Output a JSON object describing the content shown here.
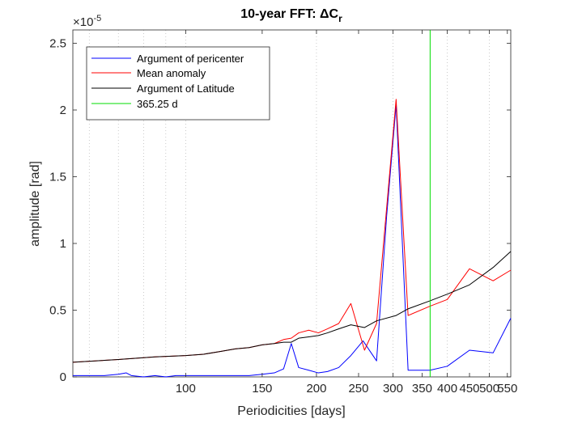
{
  "chart_data": {
    "type": "line",
    "title": "10-year FFT: ",
    "title_symbol": "ΔC",
    "title_subscript": "r",
    "xlabel": "Periodicities [days]",
    "ylabel": "amplitude [rad]",
    "y_exponent_prefix": "×10",
    "y_exponent": "-5",
    "xscale": "log",
    "xlim": [
      55,
      560
    ],
    "ylim": [
      0,
      2.6
    ],
    "x_ticks": [
      100,
      150,
      200,
      250,
      300,
      350,
      400,
      450,
      500,
      550
    ],
    "x_tick_labels": [
      "100",
      "150",
      "200",
      "250",
      "300",
      "350",
      "400",
      "450",
      "500",
      "550"
    ],
    "y_ticks": [
      0,
      0.5,
      1,
      1.5,
      2,
      2.5
    ],
    "y_tick_labels": [
      "0",
      "0.5",
      "1",
      "1.5",
      "2",
      "2.5"
    ],
    "grid": "minor-dotted-x",
    "legend_position": "top-left",
    "series": [
      {
        "name": "Argument of pericenter",
        "color": "#0000ff",
        "x": [
          55,
          60,
          65,
          70,
          73,
          75,
          80,
          85,
          90,
          95,
          100,
          110,
          120,
          130,
          140,
          150,
          160,
          168,
          175,
          182,
          192,
          202,
          212,
          225,
          240,
          256,
          275,
          290,
          305,
          325,
          365,
          400,
          450,
          510,
          560
        ],
        "y": [
          0.01,
          0.01,
          0.01,
          0.02,
          0.03,
          0.01,
          0.0,
          0.01,
          0.0,
          0.01,
          0.01,
          0.01,
          0.01,
          0.01,
          0.01,
          0.02,
          0.03,
          0.06,
          0.25,
          0.07,
          0.05,
          0.03,
          0.04,
          0.07,
          0.16,
          0.27,
          0.12,
          1.2,
          2.04,
          0.05,
          0.05,
          0.08,
          0.2,
          0.18,
          0.44
        ]
      },
      {
        "name": "Mean anomaly",
        "color": "#ff0000",
        "x": [
          55,
          70,
          85,
          100,
          110,
          120,
          130,
          140,
          150,
          160,
          168,
          175,
          182,
          192,
          202,
          212,
          225,
          240,
          245,
          258,
          275,
          305,
          325,
          365,
          400,
          450,
          510,
          560
        ],
        "y": [
          0.11,
          0.13,
          0.15,
          0.16,
          0.17,
          0.19,
          0.21,
          0.22,
          0.24,
          0.25,
          0.28,
          0.29,
          0.33,
          0.35,
          0.33,
          0.36,
          0.4,
          0.55,
          0.45,
          0.2,
          0.4,
          2.08,
          0.46,
          0.53,
          0.58,
          0.81,
          0.72,
          0.8
        ]
      },
      {
        "name": "Argument of Latitude",
        "color": "#000000",
        "x": [
          55,
          70,
          85,
          100,
          110,
          120,
          130,
          140,
          150,
          160,
          168,
          175,
          182,
          192,
          202,
          212,
          225,
          240,
          258,
          275,
          305,
          325,
          365,
          400,
          450,
          510,
          560
        ],
        "y": [
          0.11,
          0.13,
          0.15,
          0.16,
          0.17,
          0.19,
          0.21,
          0.22,
          0.24,
          0.25,
          0.26,
          0.26,
          0.29,
          0.3,
          0.31,
          0.33,
          0.36,
          0.39,
          0.37,
          0.42,
          0.46,
          0.51,
          0.57,
          0.62,
          0.69,
          0.82,
          0.94
        ]
      }
    ],
    "vertical_lines": [
      {
        "name": "365.25 d",
        "x": 365.25,
        "color": "#00dd00"
      }
    ],
    "legend": [
      "Argument of pericenter",
      "Mean anomaly",
      "Argument of Latitude",
      "365.25 d"
    ]
  }
}
